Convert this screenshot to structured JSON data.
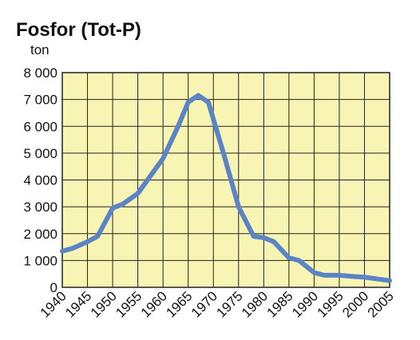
{
  "chart_data": {
    "type": "line",
    "title": "Fosfor (Tot-P)",
    "y_label": "ton",
    "x": [
      1940,
      1942,
      1945,
      1947,
      1950,
      1952,
      1955,
      1960,
      1963,
      1965,
      1967,
      1969,
      1972,
      1975,
      1978,
      1980,
      1982,
      1985,
      1987,
      1990,
      1992,
      1995,
      1998,
      2000,
      2003,
      2005
    ],
    "series": [
      {
        "name": "Tot-P",
        "color": "#5a84c6",
        "values": [
          1350,
          1450,
          1700,
          1900,
          2950,
          3100,
          3500,
          4800,
          6000,
          6900,
          7150,
          6900,
          5000,
          3000,
          1900,
          1850,
          1700,
          1100,
          1000,
          550,
          450,
          450,
          400,
          380,
          300,
          250
        ]
      }
    ],
    "xlim": [
      1940,
      2005
    ],
    "xticks": [
      1940,
      1945,
      1950,
      1955,
      1960,
      1965,
      1970,
      1975,
      1980,
      1985,
      1990,
      1995,
      2000,
      2005
    ],
    "ylim": [
      0,
      8000
    ],
    "yticks": [
      0,
      {
        "value": 1000,
        "label": "1 000"
      },
      {
        "value": 2000,
        "label": "2 000"
      },
      {
        "value": 3000,
        "label": "3 000"
      },
      {
        "value": 4000,
        "label": "4 000"
      },
      {
        "value": 5000,
        "label": "5 000"
      },
      {
        "value": 6000,
        "label": "6 000"
      },
      {
        "value": 7000,
        "label": "7 000"
      },
      {
        "value": 8000,
        "label": "8 000"
      }
    ],
    "grid": true,
    "background": "#f8f4b4"
  }
}
